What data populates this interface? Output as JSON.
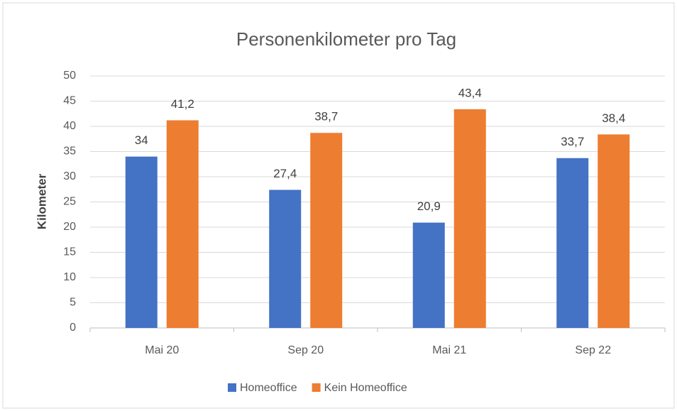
{
  "chart_data": {
    "type": "bar",
    "title": "Personenkilometer pro Tag",
    "y_label": "Kilometer",
    "categories": [
      "Mai 20",
      "Sep 20",
      "Mai 21",
      "Sep 22"
    ],
    "series": [
      {
        "name": "Homeoffice",
        "color": "#4472c4",
        "values": [
          34,
          27.4,
          20.9,
          33.7
        ],
        "value_labels": [
          "34",
          "27,4",
          "20,9",
          "33,7"
        ]
      },
      {
        "name": "Kein Homeoffice",
        "color": "#ed7d31",
        "values": [
          41.2,
          38.7,
          43.4,
          38.4
        ],
        "value_labels": [
          "41,2",
          "38,7",
          "43,4",
          "38,4"
        ]
      }
    ],
    "ylim": [
      0,
      50
    ],
    "yticks": [
      0,
      5,
      10,
      15,
      20,
      25,
      30,
      35,
      40,
      45,
      50
    ],
    "grid": true,
    "legend": "bottom"
  }
}
